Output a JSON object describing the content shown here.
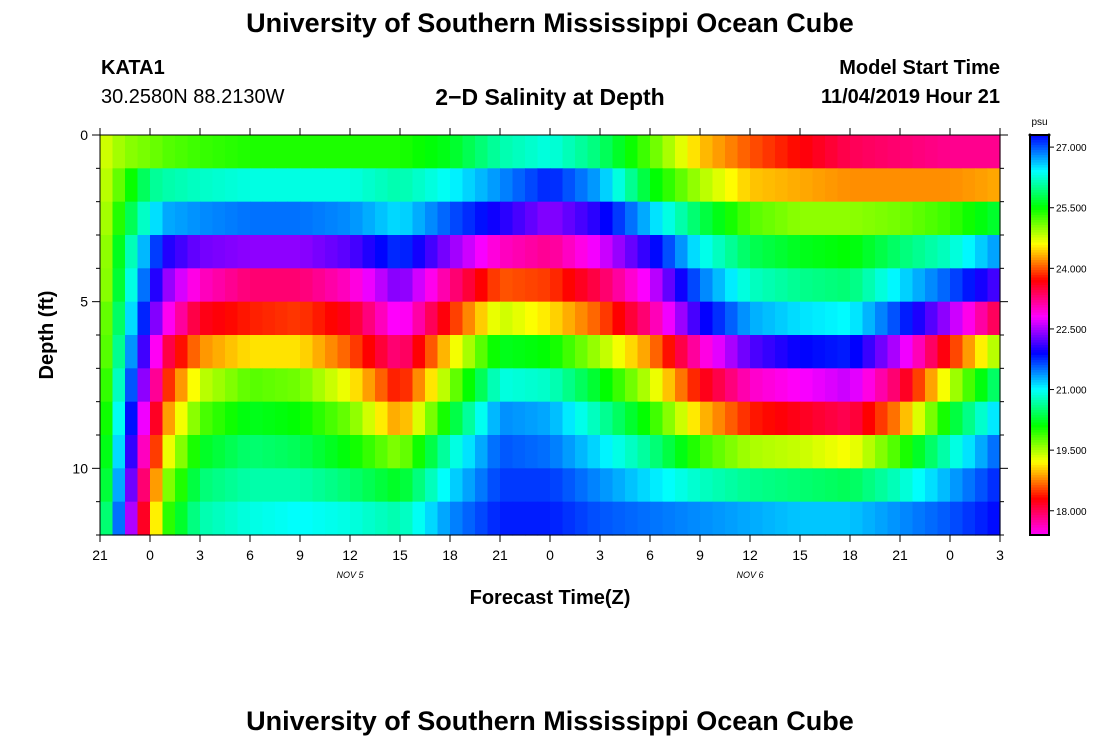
{
  "header": {
    "title": "University of Southern Mississippi Ocean Cube",
    "station_id": "KATA1",
    "station_coords": "30.2580N 88.2130W",
    "subtitle": "2−D Salinity at Depth",
    "model_label": "Model Start Time",
    "model_time": "11/04/2019 Hour 21"
  },
  "footer": {
    "title": "University of Southern Mississippi Ocean Cube"
  },
  "chart_data": {
    "type": "heatmap",
    "title": "2-D Salinity at Depth",
    "xlabel": "Forecast Time(Z)",
    "ylabel": "Depth (ft)",
    "x_tick_labels": [
      "21",
      "0",
      "3",
      "6",
      "9",
      "12",
      "15",
      "18",
      "21",
      "0",
      "3",
      "6",
      "9",
      "12",
      "15",
      "18",
      "21",
      "0",
      "3"
    ],
    "date_labels": [
      {
        "label": "NOV 5",
        "tick_index": 5
      },
      {
        "label": "NOV 6",
        "tick_index": 13
      }
    ],
    "y_ticks": [
      0,
      5,
      10
    ],
    "ylim": [
      0,
      12
    ],
    "x_range_hours": [
      0,
      54
    ],
    "colorbar": {
      "unit": "psu",
      "range": [
        17.4,
        27.3
      ],
      "tick_labels": [
        "27.000",
        "25.500",
        "24.000",
        "22.500",
        "21.000",
        "19.500",
        "18.000"
      ],
      "tick_values": [
        27.0,
        25.5,
        24.0,
        22.5,
        21.0,
        19.5,
        18.0
      ]
    },
    "time_nodes_hours": [
      0,
      1.5,
      3,
      4,
      6,
      9,
      12,
      15,
      18,
      21,
      24,
      27,
      30,
      33,
      36,
      39,
      42,
      45,
      48,
      51,
      54
    ],
    "salinity_layers_psu": [
      [
        19.3,
        19.6,
        19.7,
        19.8,
        19.9,
        20.0,
        20.0,
        20.0,
        20.0,
        20.2,
        20.7,
        20.9,
        20.5,
        19.8,
        19.0,
        18.6,
        18.3,
        18.0,
        17.9,
        17.8,
        17.8
      ],
      [
        19.3,
        19.9,
        20.6,
        20.7,
        20.8,
        20.9,
        20.9,
        20.9,
        20.7,
        21.0,
        21.4,
        21.8,
        21.3,
        20.2,
        19.5,
        19.0,
        18.9,
        18.8,
        18.8,
        18.8,
        18.9
      ],
      [
        19.3,
        20.2,
        21.0,
        21.3,
        21.4,
        21.5,
        21.5,
        21.4,
        21.1,
        21.6,
        22.0,
        22.4,
        22.0,
        21.2,
        20.4,
        19.8,
        19.6,
        19.6,
        19.7,
        19.9,
        20.3
      ],
      [
        19.3,
        20.5,
        21.5,
        22.0,
        22.3,
        22.4,
        22.4,
        22.2,
        21.7,
        22.4,
        23.0,
        23.2,
        22.7,
        22.0,
        21.0,
        20.4,
        20.2,
        20.1,
        20.5,
        20.8,
        21.4
      ],
      [
        19.3,
        20.6,
        21.8,
        22.4,
        23.0,
        23.3,
        23.3,
        23.0,
        22.3,
        23.2,
        24.0,
        23.9,
        23.4,
        22.7,
        21.5,
        20.8,
        20.6,
        20.5,
        21.1,
        21.6,
        22.2
      ],
      [
        19.4,
        20.8,
        22.1,
        22.8,
        23.6,
        23.8,
        23.9,
        23.6,
        22.7,
        23.8,
        24.8,
        24.5,
        24.0,
        23.2,
        22.0,
        21.3,
        21.1,
        21.0,
        21.7,
        22.5,
        23.5
      ],
      [
        19.4,
        21.0,
        22.5,
        23.4,
        24.2,
        24.5,
        24.5,
        24.0,
        23.2,
        24.5,
        25.6,
        25.5,
        24.9,
        24.2,
        23.0,
        22.2,
        21.9,
        21.8,
        22.6,
        23.8,
        25.0
      ],
      [
        19.5,
        21.2,
        22.8,
        23.8,
        24.8,
        25.2,
        25.1,
        24.6,
        23.7,
        25.0,
        26.3,
        26.2,
        25.6,
        24.8,
        23.7,
        23.0,
        22.8,
        22.6,
        23.4,
        24.8,
        26.0
      ],
      [
        19.6,
        21.4,
        23.2,
        24.2,
        25.2,
        25.6,
        25.5,
        25.1,
        24.2,
        25.6,
        26.8,
        26.7,
        26.1,
        25.4,
        24.4,
        23.8,
        23.6,
        23.4,
        24.2,
        25.6,
        26.6
      ],
      [
        19.7,
        21.6,
        23.5,
        24.6,
        25.6,
        25.9,
        25.8,
        25.5,
        25.0,
        26.2,
        27.0,
        26.9,
        26.5,
        26.0,
        25.3,
        24.9,
        24.8,
        24.6,
        25.3,
        26.2,
        27.0
      ],
      [
        19.8,
        21.8,
        23.8,
        25.0,
        25.9,
        26.1,
        26.1,
        25.9,
        25.6,
        26.5,
        27.1,
        27.1,
        26.8,
        26.5,
        26.2,
        26.0,
        25.9,
        25.8,
        26.2,
        26.7,
        27.2
      ],
      [
        20.0,
        22.0,
        24.1,
        25.3,
        26.1,
        26.3,
        26.4,
        26.3,
        26.1,
        26.8,
        27.2,
        27.2,
        27.0,
        26.9,
        26.8,
        26.7,
        26.6,
        26.6,
        26.8,
        27.0,
        27.3
      ]
    ]
  }
}
